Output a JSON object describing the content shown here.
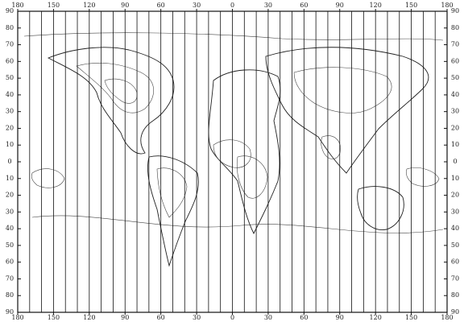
{
  "map": {
    "top_labels": [
      "180",
      "150",
      "120",
      "90",
      "60",
      "30",
      "0",
      "30",
      "60",
      "90",
      "120",
      "150",
      "180"
    ],
    "bottom_labels": [
      "180",
      "150",
      "120",
      "90",
      "60",
      "30",
      "0",
      "30",
      "60",
      "90",
      "120",
      "150",
      "180"
    ],
    "left_labels": [
      "90",
      "80",
      "70",
      "60",
      "50",
      "40",
      "30",
      "20",
      "10",
      "0",
      "10",
      "20",
      "30",
      "40",
      "50",
      "60",
      "70",
      "80",
      "90"
    ],
    "right_labels": [
      "90",
      "80",
      "70",
      "60",
      "50",
      "40",
      "30",
      "20",
      "10",
      "0",
      "10",
      "20",
      "30",
      "40",
      "50",
      "60",
      "70",
      "80",
      "90"
    ]
  }
}
